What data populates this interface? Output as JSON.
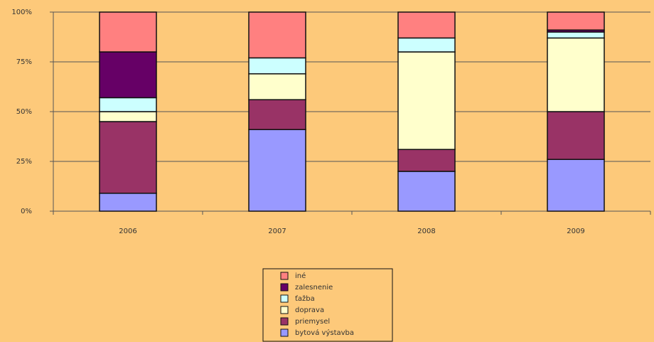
{
  "chart_data": {
    "type": "stacked_bar",
    "categories": [
      "2006",
      "2007",
      "2008",
      "2009"
    ],
    "series": [
      {
        "name": "bytová výstavba",
        "color": "#9999ff",
        "values": [
          9,
          41,
          20,
          26
        ]
      },
      {
        "name": "priemysel",
        "color": "#993366",
        "values": [
          36,
          15,
          11,
          24
        ]
      },
      {
        "name": "doprava",
        "color": "#ffffcc",
        "values": [
          5,
          13,
          49,
          37
        ]
      },
      {
        "name": "ťažba",
        "color": "#ccffff",
        "values": [
          7,
          8,
          7,
          3
        ]
      },
      {
        "name": "zalesnenie",
        "color": "#660066",
        "values": [
          23,
          0,
          0,
          1
        ]
      },
      {
        "name": "iné",
        "color": "#ff8080",
        "values": [
          20,
          23,
          13,
          9
        ]
      }
    ],
    "ylim": [
      0,
      100
    ],
    "yticks": [
      {
        "value": 0,
        "label": "0%"
      },
      {
        "value": 25,
        "label": "25%"
      },
      {
        "value": 50,
        "label": "50%"
      },
      {
        "value": 75,
        "label": "75%"
      },
      {
        "value": 100,
        "label": "100%"
      }
    ],
    "grid": true,
    "legend": "bottom"
  }
}
